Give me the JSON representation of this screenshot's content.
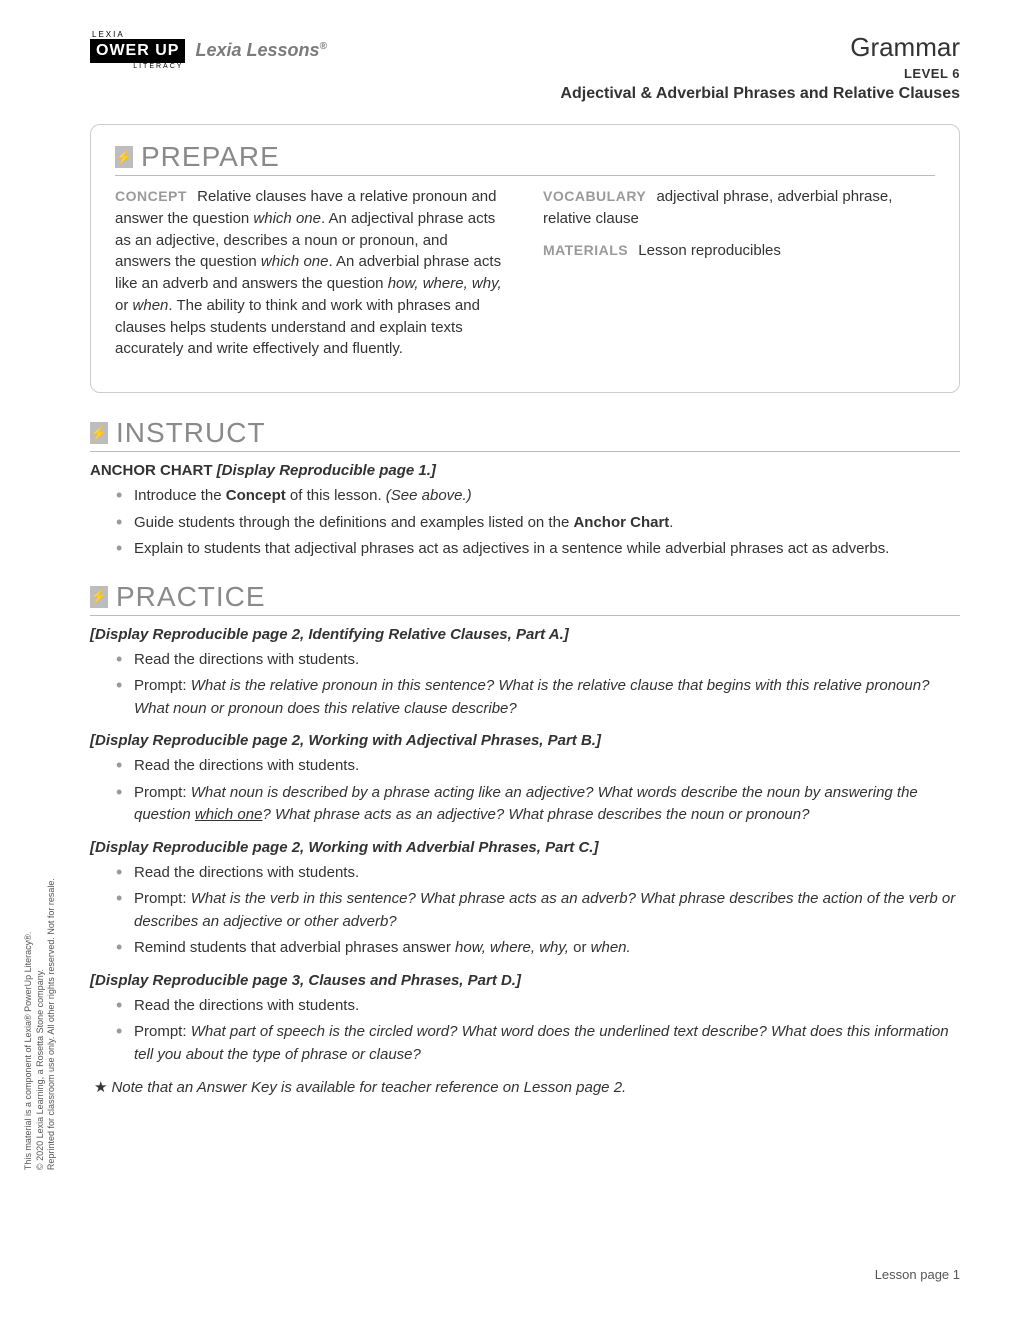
{
  "header": {
    "logo_lexia": "LEXIA",
    "logo_main": "OWER UP",
    "logo_lit": "LITERACY",
    "lessons_brand": "Lexia Lessons",
    "reg": "®",
    "subject": "Grammar",
    "level": "LEVEL 6",
    "topic": "Adjectival & Adverbial Phrases and Relative Clauses"
  },
  "prepare": {
    "title": "PREPARE",
    "concept_label": "CONCEPT",
    "concept_text_1": "Relative clauses have a relative pronoun and answer the question ",
    "concept_ital_1": "which one",
    "concept_text_2": ". An adjectival phrase acts as an adjective, describes a noun or pronoun, and answers the question ",
    "concept_ital_2": "which one",
    "concept_text_3": ". An adverbial phrase acts like an adverb and answers the question ",
    "concept_ital_3": "how, where, why,",
    "concept_text_4": " or ",
    "concept_ital_4": "when",
    "concept_text_5": ". The ability to think and work with phrases and clauses helps students understand and explain texts accurately and write effectively and fluently.",
    "vocab_label": "VOCABULARY",
    "vocab_text": "adjectival phrase, adverbial phrase, relative clause",
    "materials_label": "MATERIALS",
    "materials_text": "Lesson reproducibles"
  },
  "instruct": {
    "title": "INSTRUCT",
    "anchor_label": "ANCHOR CHART ",
    "anchor_ital": "[Display Reproducible page 1.]",
    "b1a": "Introduce the ",
    "b1b": "Concept",
    "b1c": " of this lesson. ",
    "b1d": "(See above.)",
    "b2a": "Guide students through the definitions and examples listed on the ",
    "b2b": "Anchor Chart",
    "b2c": ".",
    "b3": "Explain to students that adjectival phrases act as adjectives in a sentence while adverbial phrases act as adverbs."
  },
  "practice": {
    "title": "PRACTICE",
    "s1_head": "[Display Reproducible page 2, Identifying Relative Clauses, Part A.]",
    "s1_b1": "Read the directions with students.",
    "s1_b2a": "Prompt: ",
    "s1_b2b": "What is the relative pronoun in this sentence? What is the relative clause that begins with this relative pronoun? What noun or pronoun does this relative clause describe?",
    "s2_head": "[Display Reproducible page 2, Working with Adjectival Phrases, Part B.]",
    "s2_b1": "Read the directions with students.",
    "s2_b2a": "Prompt: ",
    "s2_b2b": "What noun is described by a phrase acting like an adjective? What words describe the noun by answering the question ",
    "s2_b2u": "which one",
    "s2_b2c": "? What phrase acts as an adjective? What phrase describes the noun or pronoun?",
    "s3_head": "[Display Reproducible page 2, Working with Adverbial Phrases, Part C.]",
    "s3_b1": "Read the directions with students.",
    "s3_b2a": "Prompt: ",
    "s3_b2b": "What is the verb in this sentence? What phrase acts as an adverb? What phrase describes the action of the verb or describes an adjective or other adverb?",
    "s3_b3a": "Remind students that adverbial phrases answer ",
    "s3_b3b": "how, where, why,",
    "s3_b3c": " or ",
    "s3_b3d": "when.",
    "s4_head": "[Display Reproducible page 3, Clauses and Phrases, Part D.]",
    "s4_b1": "Read the directions with students.",
    "s4_b2a": "Prompt: ",
    "s4_b2b": "What part of speech is the circled word? What word does the underlined text describe? What does this information tell you about the type of phrase or clause?",
    "note": "Note that an Answer Key is available for teacher reference on Lesson page 2."
  },
  "side": {
    "l1": "This material is a component of Lexia® PowerUp Literacy®.",
    "l2": "© 2020 Lexia Learning, a Rosetta Stone company.",
    "l3": "Reprinted for classroom use only. All other rights reserved. Not for resale."
  },
  "footer": "Lesson page 1",
  "colors": {
    "gray_label": "#9a9a9a",
    "heading_gray": "#8a8a8a",
    "border": "#cccccc",
    "text": "#333333"
  }
}
